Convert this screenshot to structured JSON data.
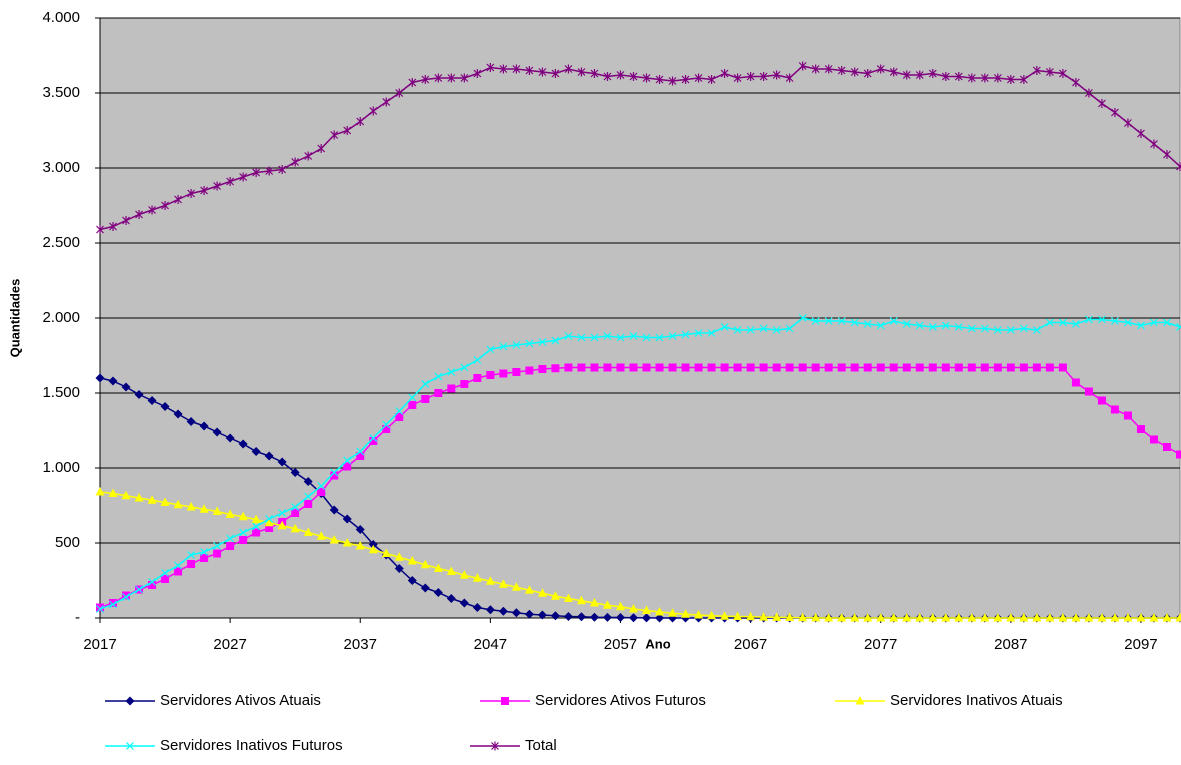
{
  "chart_data": {
    "type": "line",
    "x_label": "Ano",
    "y_label": "Quantidades",
    "xlim": [
      2017,
      2100
    ],
    "xticks": [
      2017,
      2027,
      2037,
      2047,
      2057,
      2067,
      2077,
      2087,
      2097
    ],
    "ylim": [
      0,
      4000
    ],
    "yticks": [
      {
        "value": 0,
        "label": "-"
      },
      500,
      {
        "value": 1000,
        "label": "1.000"
      },
      {
        "value": 1500,
        "label": "1.500"
      },
      {
        "value": 2000,
        "label": "2.000"
      },
      {
        "value": 2500,
        "label": "2.500"
      },
      {
        "value": 3000,
        "label": "3.000"
      },
      {
        "value": 3500,
        "label": "3.500"
      },
      {
        "value": 4000,
        "label": "4.000"
      }
    ],
    "grid": true,
    "background": "#c0c0c0",
    "legend": "bottom",
    "x": [
      2017,
      2018,
      2019,
      2020,
      2021,
      2022,
      2023,
      2024,
      2025,
      2026,
      2027,
      2028,
      2029,
      2030,
      2031,
      2032,
      2033,
      2034,
      2035,
      2036,
      2037,
      2038,
      2039,
      2040,
      2041,
      2042,
      2043,
      2044,
      2045,
      2046,
      2047,
      2048,
      2049,
      2050,
      2051,
      2052,
      2053,
      2054,
      2055,
      2056,
      2057,
      2058,
      2059,
      2060,
      2061,
      2062,
      2063,
      2064,
      2065,
      2066,
      2067,
      2068,
      2069,
      2070,
      2071,
      2072,
      2073,
      2074,
      2075,
      2076,
      2077,
      2078,
      2079,
      2080,
      2081,
      2082,
      2083,
      2084,
      2085,
      2086,
      2087,
      2088,
      2089,
      2090,
      2091,
      2092,
      2093,
      2094,
      2095,
      2096,
      2097,
      2098,
      2099,
      2100
    ],
    "series": [
      {
        "name": "Servidores Ativos Atuais",
        "color": "#000080",
        "marker": "diamond",
        "values": [
          1600,
          1580,
          1540,
          1490,
          1450,
          1410,
          1360,
          1310,
          1280,
          1240,
          1200,
          1160,
          1110,
          1080,
          1040,
          970,
          910,
          830,
          720,
          660,
          590,
          490,
          420,
          330,
          250,
          200,
          170,
          130,
          100,
          70,
          55,
          45,
          35,
          25,
          20,
          15,
          10,
          8,
          5,
          4,
          3,
          2,
          1,
          0,
          0,
          0,
          0,
          0,
          0,
          0,
          0,
          0,
          0,
          0,
          0,
          0,
          0,
          0,
          0,
          0,
          0,
          0,
          0,
          0,
          0,
          0,
          0,
          0,
          0,
          0,
          0,
          0,
          0,
          0,
          0,
          0,
          0,
          0,
          0,
          0,
          0,
          0,
          0,
          0
        ]
      },
      {
        "name": "Servidores Ativos Futuros",
        "color": "#ff00ff",
        "marker": "square",
        "values": [
          70,
          100,
          150,
          190,
          220,
          260,
          310,
          360,
          400,
          430,
          480,
          520,
          570,
          600,
          640,
          700,
          760,
          840,
          950,
          1010,
          1080,
          1180,
          1260,
          1340,
          1420,
          1460,
          1500,
          1530,
          1560,
          1600,
          1620,
          1630,
          1640,
          1650,
          1660,
          1665,
          1670,
          1670,
          1670,
          1670,
          1670,
          1670,
          1670,
          1670,
          1670,
          1670,
          1670,
          1670,
          1670,
          1670,
          1670,
          1670,
          1670,
          1670,
          1670,
          1670,
          1670,
          1670,
          1670,
          1670,
          1670,
          1670,
          1670,
          1670,
          1670,
          1670,
          1670,
          1670,
          1670,
          1670,
          1670,
          1670,
          1670,
          1670,
          1670,
          1570,
          1510,
          1450,
          1390,
          1350,
          1260,
          1190,
          1140,
          1090
        ]
      },
      {
        "name": "Servidores Inativos Atuais",
        "color": "#ffff00",
        "marker": "triangle",
        "values": [
          840,
          830,
          815,
          800,
          785,
          770,
          755,
          740,
          725,
          710,
          690,
          675,
          655,
          635,
          615,
          595,
          570,
          545,
          520,
          500,
          480,
          455,
          430,
          405,
          380,
          355,
          330,
          310,
          285,
          265,
          245,
          225,
          205,
          185,
          165,
          145,
          130,
          115,
          100,
          85,
          75,
          60,
          50,
          40,
          32,
          25,
          20,
          15,
          12,
          10,
          8,
          6,
          4,
          3,
          2,
          1,
          0,
          0,
          0,
          0,
          0,
          0,
          0,
          0,
          0,
          0,
          0,
          0,
          0,
          0,
          0,
          0,
          0,
          0,
          0,
          0,
          0,
          0,
          0,
          0,
          0,
          0,
          0,
          0
        ]
      },
      {
        "name": "Servidores Inativos Futuros",
        "color": "#00ffff",
        "marker": "x",
        "values": [
          60,
          90,
          140,
          190,
          240,
          300,
          350,
          420,
          440,
          480,
          530,
          570,
          610,
          660,
          700,
          740,
          810,
          880,
          970,
          1050,
          1110,
          1200,
          1290,
          1380,
          1470,
          1560,
          1610,
          1640,
          1670,
          1720,
          1790,
          1810,
          1820,
          1830,
          1840,
          1850,
          1880,
          1870,
          1870,
          1880,
          1870,
          1880,
          1870,
          1870,
          1880,
          1890,
          1900,
          1900,
          1940,
          1920,
          1920,
          1930,
          1920,
          1930,
          2000,
          1980,
          1980,
          1980,
          1970,
          1960,
          1950,
          1980,
          1960,
          1950,
          1940,
          1950,
          1940,
          1930,
          1930,
          1920,
          1920,
          1930,
          1920,
          1970,
          1970,
          1960,
          1990,
          1990,
          1980,
          1970,
          1950,
          1970,
          1970,
          1940
        ]
      },
      {
        "name": "Total",
        "color": "#800080",
        "marker": "asterisk",
        "values": [
          2590,
          2610,
          2650,
          2690,
          2720,
          2750,
          2790,
          2830,
          2850,
          2880,
          2910,
          2940,
          2970,
          2980,
          2990,
          3040,
          3080,
          3130,
          3220,
          3250,
          3310,
          3380,
          3440,
          3500,
          3570,
          3590,
          3600,
          3600,
          3600,
          3630,
          3670,
          3660,
          3660,
          3650,
          3640,
          3630,
          3660,
          3640,
          3630,
          3610,
          3620,
          3610,
          3600,
          3590,
          3580,
          3590,
          3600,
          3590,
          3630,
          3600,
          3610,
          3610,
          3620,
          3600,
          3680,
          3660,
          3660,
          3650,
          3640,
          3630,
          3660,
          3640,
          3620,
          3620,
          3630,
          3610,
          3610,
          3600,
          3600,
          3600,
          3590,
          3590,
          3650,
          3640,
          3630,
          3570,
          3500,
          3430,
          3370,
          3300,
          3230,
          3160,
          3090,
          3010
        ]
      }
    ]
  }
}
